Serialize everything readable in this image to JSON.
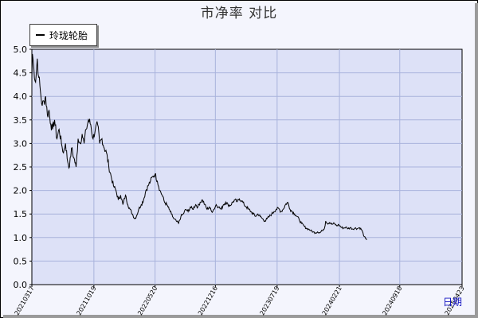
{
  "chart_data": {
    "type": "line",
    "title": "市净率  对比",
    "series": [
      {
        "name": "玲珑轮胎",
        "color": "#000000",
        "points": [
          [
            "2021-03-17",
            4.4
          ],
          [
            "2021-03-19",
            4.9
          ],
          [
            "2021-03-24",
            4.6
          ],
          [
            "2021-03-30",
            4.3
          ],
          [
            "2021-04-05",
            4.8
          ],
          [
            "2021-04-10",
            4.4
          ],
          [
            "2021-04-16",
            4.1
          ],
          [
            "2021-04-22",
            3.8
          ],
          [
            "2021-04-28",
            3.9
          ],
          [
            "2021-05-04",
            4.0
          ],
          [
            "2021-05-10",
            3.6
          ],
          [
            "2021-05-16",
            3.7
          ],
          [
            "2021-05-22",
            3.4
          ],
          [
            "2021-05-28",
            3.3
          ],
          [
            "2021-06-04",
            3.5
          ],
          [
            "2021-06-12",
            3.1
          ],
          [
            "2021-06-20",
            3.3
          ],
          [
            "2021-06-28",
            3.0
          ],
          [
            "2021-07-05",
            2.8
          ],
          [
            "2021-07-12",
            3.0
          ],
          [
            "2021-07-20",
            2.6
          ],
          [
            "2021-07-26",
            2.5
          ],
          [
            "2021-08-02",
            2.9
          ],
          [
            "2021-08-10",
            2.7
          ],
          [
            "2021-08-18",
            2.5
          ],
          [
            "2021-08-25",
            3.1
          ],
          [
            "2021-09-01",
            3.0
          ],
          [
            "2021-09-08",
            3.2
          ],
          [
            "2021-09-15",
            3.0
          ],
          [
            "2021-09-22",
            3.3
          ],
          [
            "2021-09-30",
            3.5
          ],
          [
            "2021-10-08",
            3.4
          ],
          [
            "2021-10-16",
            3.1
          ],
          [
            "2021-10-24",
            3.3
          ],
          [
            "2021-11-01",
            3.4
          ],
          [
            "2021-11-08",
            3.0
          ],
          [
            "2021-11-16",
            3.1
          ],
          [
            "2021-11-24",
            2.9
          ],
          [
            "2021-12-02",
            2.8
          ],
          [
            "2021-12-10",
            2.5
          ],
          [
            "2021-12-18",
            2.3
          ],
          [
            "2021-12-26",
            2.1
          ],
          [
            "2022-01-04",
            2.0
          ],
          [
            "2022-01-12",
            1.8
          ],
          [
            "2022-01-20",
            1.9
          ],
          [
            "2022-01-28",
            1.7
          ],
          [
            "2022-02-06",
            1.9
          ],
          [
            "2022-02-14",
            1.7
          ],
          [
            "2022-02-22",
            1.6
          ],
          [
            "2022-03-02",
            1.5
          ],
          [
            "2022-03-10",
            1.4
          ],
          [
            "2022-03-16",
            1.45
          ],
          [
            "2022-03-24",
            1.6
          ],
          [
            "2022-04-02",
            1.7
          ],
          [
            "2022-04-10",
            1.8
          ],
          [
            "2022-04-18",
            2.0
          ],
          [
            "2022-04-26",
            2.1
          ],
          [
            "2022-05-04",
            2.2
          ],
          [
            "2022-05-12",
            2.3
          ],
          [
            "2022-05-20",
            2.35
          ],
          [
            "2022-05-28",
            2.2
          ],
          [
            "2022-06-06",
            2.0
          ],
          [
            "2022-06-14",
            1.9
          ],
          [
            "2022-06-22",
            1.75
          ],
          [
            "2022-06-30",
            1.7
          ],
          [
            "2022-07-08",
            1.6
          ],
          [
            "2022-07-16",
            1.5
          ],
          [
            "2022-07-24",
            1.4
          ],
          [
            "2022-08-02",
            1.35
          ],
          [
            "2022-08-10",
            1.3
          ],
          [
            "2022-08-18",
            1.45
          ],
          [
            "2022-08-26",
            1.5
          ],
          [
            "2022-09-04",
            1.6
          ],
          [
            "2022-09-12",
            1.55
          ],
          [
            "2022-09-20",
            1.65
          ],
          [
            "2022-09-28",
            1.6
          ],
          [
            "2022-10-08",
            1.7
          ],
          [
            "2022-10-16",
            1.65
          ],
          [
            "2022-10-24",
            1.75
          ],
          [
            "2022-11-01",
            1.8
          ],
          [
            "2022-11-09",
            1.7
          ],
          [
            "2022-11-17",
            1.6
          ],
          [
            "2022-11-25",
            1.65
          ],
          [
            "2022-12-03",
            1.55
          ],
          [
            "2022-12-11",
            1.6
          ],
          [
            "2022-12-19",
            1.7
          ],
          [
            "2022-12-27",
            1.65
          ],
          [
            "2023-01-05",
            1.6
          ],
          [
            "2023-01-13",
            1.7
          ],
          [
            "2023-01-21",
            1.75
          ],
          [
            "2023-01-29",
            1.7
          ],
          [
            "2023-02-06",
            1.68
          ],
          [
            "2023-02-14",
            1.75
          ],
          [
            "2023-02-22",
            1.8
          ],
          [
            "2023-03-02",
            1.76
          ],
          [
            "2023-03-10",
            1.82
          ],
          [
            "2023-03-18",
            1.78
          ],
          [
            "2023-03-26",
            1.7
          ],
          [
            "2023-04-03",
            1.65
          ],
          [
            "2023-04-11",
            1.6
          ],
          [
            "2023-04-19",
            1.55
          ],
          [
            "2023-04-27",
            1.5
          ],
          [
            "2023-05-05",
            1.45
          ],
          [
            "2023-05-13",
            1.5
          ],
          [
            "2023-05-21",
            1.45
          ],
          [
            "2023-05-29",
            1.4
          ],
          [
            "2023-06-06",
            1.35
          ],
          [
            "2023-06-14",
            1.4
          ],
          [
            "2023-06-22",
            1.45
          ],
          [
            "2023-06-30",
            1.5
          ],
          [
            "2023-07-08",
            1.55
          ],
          [
            "2023-07-16",
            1.6
          ],
          [
            "2023-07-24",
            1.62
          ],
          [
            "2023-08-01",
            1.55
          ],
          [
            "2023-08-09",
            1.6
          ],
          [
            "2023-08-17",
            1.7
          ],
          [
            "2023-08-25",
            1.75
          ],
          [
            "2023-09-02",
            1.6
          ],
          [
            "2023-09-10",
            1.55
          ],
          [
            "2023-09-18",
            1.5
          ],
          [
            "2023-09-26",
            1.45
          ],
          [
            "2023-10-04",
            1.38
          ],
          [
            "2023-10-12",
            1.3
          ],
          [
            "2023-10-20",
            1.25
          ],
          [
            "2023-10-28",
            1.2
          ],
          [
            "2023-11-05",
            1.18
          ],
          [
            "2023-11-13",
            1.15
          ],
          [
            "2023-11-21",
            1.12
          ],
          [
            "2023-11-29",
            1.1
          ],
          [
            "2023-12-07",
            1.12
          ],
          [
            "2023-12-15",
            1.1
          ],
          [
            "2023-12-23",
            1.15
          ],
          [
            "2023-12-31",
            1.2
          ],
          [
            "2024-01-04",
            1.35
          ],
          [
            "2024-01-10",
            1.3
          ],
          [
            "2024-01-18",
            1.32
          ],
          [
            "2024-01-26",
            1.28
          ],
          [
            "2024-02-03",
            1.3
          ],
          [
            "2024-02-11",
            1.25
          ],
          [
            "2024-02-19",
            1.27
          ],
          [
            "2024-02-27",
            1.22
          ],
          [
            "2024-03-06",
            1.2
          ],
          [
            "2024-03-14",
            1.22
          ],
          [
            "2024-03-22",
            1.19
          ],
          [
            "2024-03-30",
            1.21
          ],
          [
            "2024-04-07",
            1.18
          ],
          [
            "2024-04-15",
            1.2
          ],
          [
            "2024-04-23",
            1.19
          ],
          [
            "2024-05-01",
            1.21
          ],
          [
            "2024-05-09",
            1.16
          ],
          [
            "2024-05-17",
            1.02
          ],
          [
            "2024-05-22",
            0.98
          ],
          [
            "2024-05-26",
            0.95
          ]
        ]
      }
    ],
    "x_ticks": [
      "20210317",
      "20211019",
      "20220520",
      "20221216",
      "20230719",
      "20240221",
      "20240918",
      "20250423"
    ],
    "x_axis_label": "日期",
    "y_ticks": [
      "0.0",
      "0.5",
      "1.0",
      "1.5",
      "2.0",
      "2.5",
      "3.0",
      "3.5",
      "4.0",
      "4.5",
      "5.0"
    ],
    "ylim": [
      0,
      5
    ],
    "grid": true,
    "legend_position": "top-left"
  }
}
